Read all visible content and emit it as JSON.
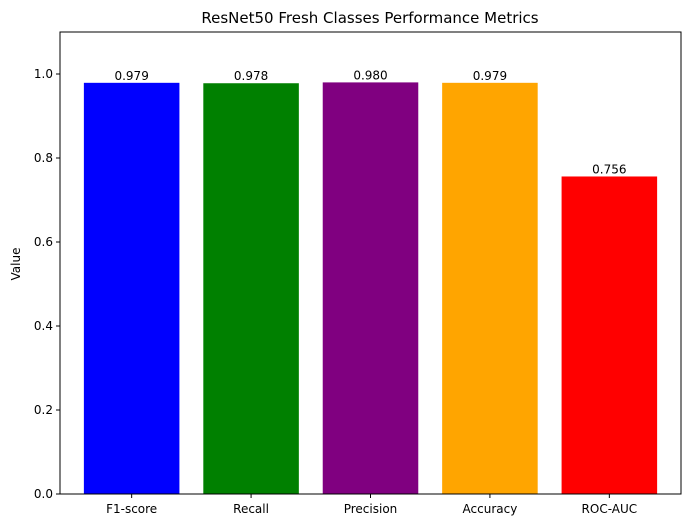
{
  "chart_data": {
    "type": "bar",
    "title": "ResNet50 Fresh Classes Performance Metrics",
    "xlabel": "",
    "ylabel": "Value",
    "categories": [
      "F1-score",
      "Recall",
      "Precision",
      "Accuracy",
      "ROC-AUC"
    ],
    "values": [
      0.979,
      0.978,
      0.98,
      0.979,
      0.756
    ],
    "value_labels": [
      "0.979",
      "0.978",
      "0.980",
      "0.979",
      "0.756"
    ],
    "colors": [
      "#0000ff",
      "#008000",
      "#800080",
      "#ffa500",
      "#ff0000"
    ],
    "ylim": [
      0,
      1.1
    ],
    "yticks": [
      0.0,
      0.2,
      0.4,
      0.6,
      0.8,
      1.0
    ],
    "ytick_labels": [
      "0.0",
      "0.2",
      "0.4",
      "0.6",
      "0.8",
      "1.0"
    ],
    "grid": false,
    "legend": "none"
  }
}
